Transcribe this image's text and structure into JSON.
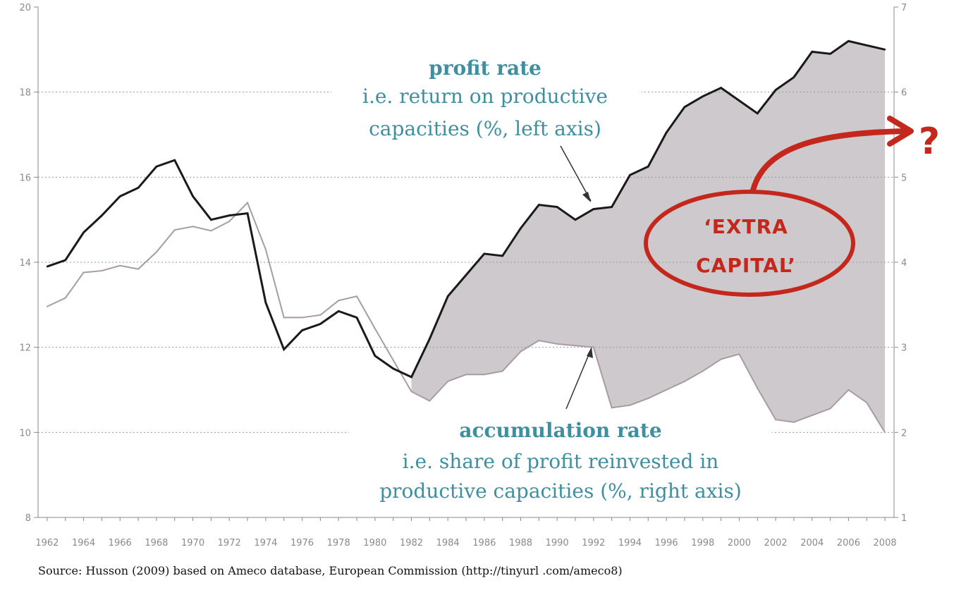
{
  "chart_data": {
    "type": "line",
    "x": [
      1962,
      1963,
      1964,
      1965,
      1966,
      1967,
      1968,
      1969,
      1970,
      1971,
      1972,
      1973,
      1974,
      1975,
      1976,
      1977,
      1978,
      1979,
      1980,
      1981,
      1982,
      1983,
      1984,
      1985,
      1986,
      1987,
      1988,
      1989,
      1990,
      1991,
      1992,
      1993,
      1994,
      1995,
      1996,
      1997,
      1998,
      1999,
      2000,
      2001,
      2002,
      2003,
      2004,
      2005,
      2006,
      2007,
      2008
    ],
    "xlim": [
      1961.5,
      2008.5
    ],
    "x_ticks": [
      "1962",
      "1964",
      "1966",
      "1968",
      "1970",
      "1972",
      "1974",
      "1976",
      "1978",
      "1980",
      "1982",
      "1984",
      "1986",
      "1988",
      "1990",
      "1992",
      "1994",
      "1996",
      "1998",
      "2000",
      "2002",
      "2004",
      "2006",
      "2008"
    ],
    "left_axis": {
      "ylim": [
        8,
        20
      ],
      "ticks": [
        "8",
        "10",
        "12",
        "14",
        "16",
        "18",
        "20"
      ]
    },
    "right_axis": {
      "ylim": [
        1,
        7
      ],
      "ticks": [
        "1",
        "2",
        "3",
        "4",
        "5",
        "6",
        "7"
      ]
    },
    "series": [
      {
        "axis": "left",
        "color": "#1a1a1a",
        "values": [
          13.9,
          14.05,
          14.7,
          15.1,
          15.55,
          15.75,
          16.25,
          16.4,
          15.55,
          15.0,
          15.1,
          15.15,
          13.05,
          11.95,
          12.4,
          12.55,
          12.85,
          12.7,
          11.8,
          11.5,
          11.3,
          12.2,
          13.2,
          13.7,
          14.2,
          14.15,
          14.8,
          15.35,
          15.3,
          15.0,
          15.25,
          15.3,
          16.05,
          16.25,
          17.05,
          17.65,
          17.9,
          18.1,
          17.8,
          17.5,
          18.05,
          18.35,
          18.95,
          18.9,
          19.2,
          19.1,
          19.0
        ]
      },
      {
        "axis": "right",
        "color": "#a89ca0",
        "values": [
          3.48,
          3.58,
          3.88,
          3.9,
          3.96,
          3.92,
          4.12,
          4.38,
          4.42,
          4.37,
          4.48,
          4.7,
          4.15,
          3.35,
          3.35,
          3.38,
          3.55,
          3.6,
          3.22,
          2.85,
          2.48,
          2.37,
          2.6,
          2.68,
          2.68,
          2.72,
          2.95,
          3.08,
          3.04,
          3.02,
          3.0,
          2.29,
          2.32,
          2.4,
          2.5,
          2.6,
          2.72,
          2.86,
          2.92,
          2.52,
          2.15,
          2.12,
          2.2,
          2.28,
          2.5,
          2.35,
          2.0
        ]
      }
    ],
    "shade": {
      "from_year": 1982,
      "color": "#cdc9cc"
    },
    "grid": "dotted-horizontal",
    "annotations": {
      "profit_title": "profit rate",
      "profit_line1": "i.e. return on productive",
      "profit_line2": "capacities (%, left axis)",
      "accum_title": "accumulation rate",
      "accum_line1": "i.e. share of profit reinvested in",
      "accum_line2": "productive capacities (%, right axis)",
      "extra_line1": "‘EXTRA",
      "extra_line2": "CAPITAL’",
      "question": "?"
    },
    "accent_color": "#c4281c",
    "annotation_color": "#3f8fa0"
  },
  "source": "Source: Husson (2009) based on Ameco database, European Commission (http://tinyurl .com/ameco8)"
}
